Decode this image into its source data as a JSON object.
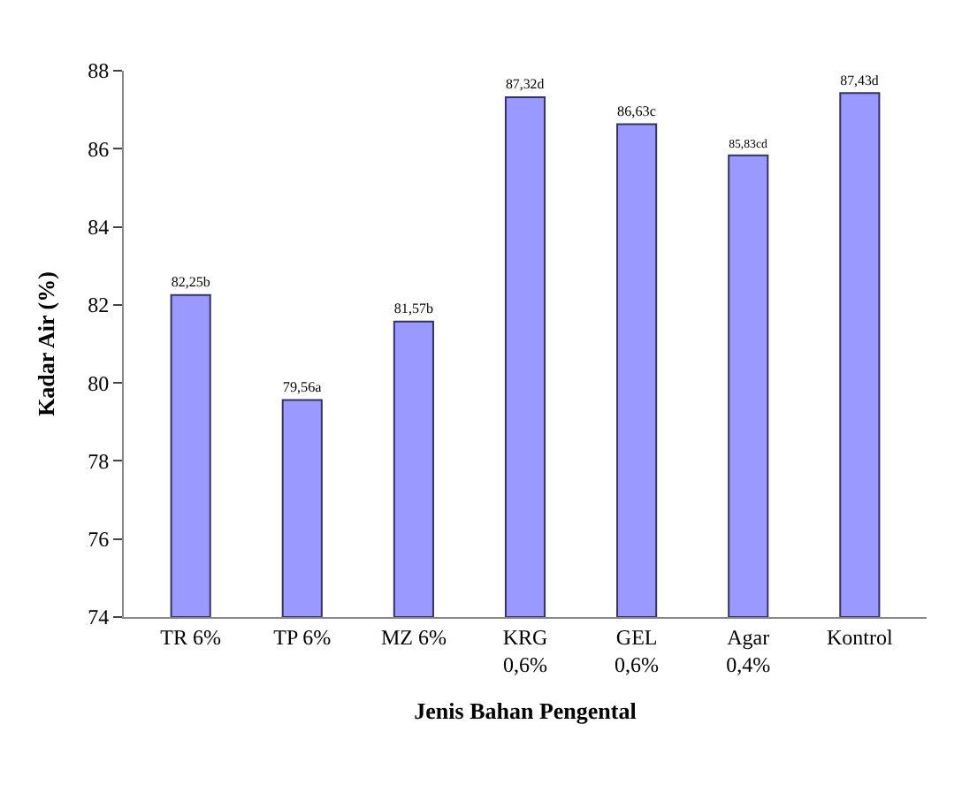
{
  "chart_data": {
    "type": "bar",
    "xlabel": "Jenis Bahan Pengental",
    "ylabel": "Kadar Air (%)",
    "categories": [
      "TR 6%",
      "TP 6%",
      "MZ 6%",
      "KRG\n0,6%",
      "GEL\n0,6%",
      "Agar\n0,4%",
      "Kontrol"
    ],
    "values": [
      82.25,
      79.56,
      81.57,
      87.32,
      86.63,
      85.83,
      87.43
    ],
    "value_labels": [
      "82,25b",
      "79,56a",
      "81,57b",
      "87,32d",
      "86,63c",
      "85,83cd",
      "87,43d"
    ],
    "color": "#9999ff",
    "ylim": [
      74,
      88
    ],
    "yticks": [
      74,
      76,
      78,
      80,
      82,
      84,
      86,
      88
    ],
    "grid": false,
    "legend": false
  }
}
